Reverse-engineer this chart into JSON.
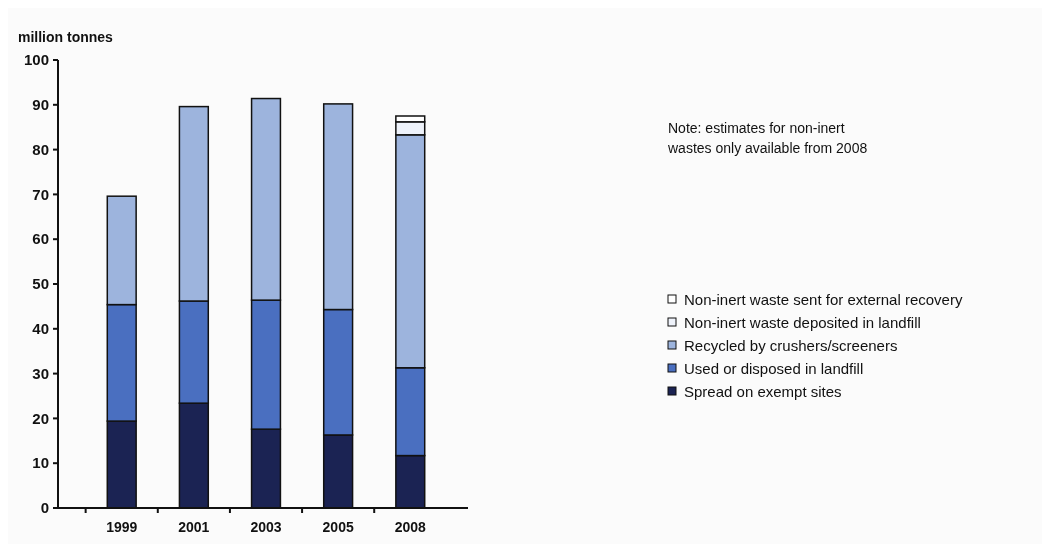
{
  "chart_data": {
    "type": "bar",
    "stacked": true,
    "ylabel": "million tonnes",
    "categories": [
      "1999",
      "2001",
      "2003",
      "2005",
      "2008"
    ],
    "ylim": [
      0,
      100
    ],
    "yticks": [
      0,
      10,
      20,
      30,
      40,
      50,
      60,
      70,
      80,
      90,
      100
    ],
    "grid": false,
    "legend": "right",
    "annotations": [
      "Note: estimates for non-inert wastes only available from 2008"
    ],
    "series": [
      {
        "name": "Spread on exempt sites",
        "color": "#1b2353",
        "values": [
          19.4,
          23.4,
          17.6,
          16.3,
          11.7
        ]
      },
      {
        "name": "Used or disposed in landfill",
        "color": "#4a6fc0",
        "values": [
          26.0,
          22.8,
          28.8,
          28.0,
          19.6
        ]
      },
      {
        "name": "Recycled by crushers/screeners",
        "color": "#9db4dd",
        "values": [
          24.2,
          43.4,
          45.0,
          45.9,
          52.0
        ]
      },
      {
        "name": "Non-inert waste deposited in landfill",
        "color": "#eef2fa",
        "values": [
          null,
          null,
          null,
          null,
          2.9
        ]
      },
      {
        "name": "Non-inert waste sent for external recovery",
        "color": "#ffffff",
        "values": [
          null,
          null,
          null,
          null,
          1.3
        ]
      }
    ]
  }
}
